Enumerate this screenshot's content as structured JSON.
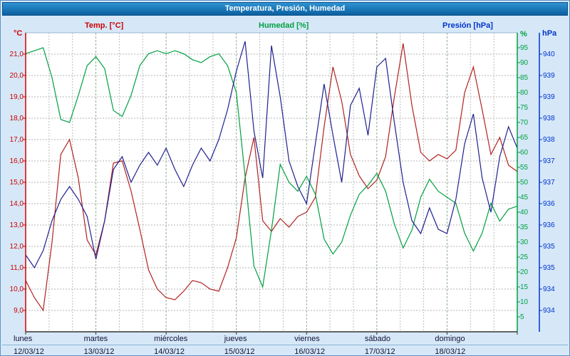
{
  "title": "Temperatura, Presión, Humedad",
  "legend": {
    "temp": "Temp. [°C]",
    "humidity": "Humedad [%]",
    "pressure": "Presión [hPa]"
  },
  "units": {
    "temp": "°C",
    "humidity": "%",
    "pressure": "hPa"
  },
  "chart_data": {
    "type": "line",
    "title": "Temperatura, Presión, Humedad",
    "x_step_hours": 3,
    "x_range_days": 7,
    "grid": "dashed",
    "days": [
      {
        "name": "lunes",
        "date": "12/03/12"
      },
      {
        "name": "martes",
        "date": "13/03/12"
      },
      {
        "name": "miércoles",
        "date": "14/03/12"
      },
      {
        "name": "jueves",
        "date": "15/03/12"
      },
      {
        "name": "viernes",
        "date": "16/03/12"
      },
      {
        "name": "sábado",
        "date": "17/03/12"
      },
      {
        "name": "domingo",
        "date": "18/03/12"
      }
    ],
    "axes": {
      "temp": {
        "label": "°C",
        "color": "#cc0000",
        "min": 8,
        "max": 22,
        "ticks": [
          {
            "value": 21,
            "label": "21,0"
          },
          {
            "value": 20,
            "label": "20,0"
          },
          {
            "value": 19,
            "label": "19,0"
          },
          {
            "value": 18,
            "label": "18,0"
          },
          {
            "value": 17,
            "label": "17,0"
          },
          {
            "value": 16,
            "label": "16,0"
          },
          {
            "value": 15,
            "label": "15,0"
          },
          {
            "value": 14,
            "label": "14,0"
          },
          {
            "value": 13,
            "label": "13,0"
          },
          {
            "value": 12,
            "label": "12,0"
          },
          {
            "value": 11,
            "label": "11,0"
          },
          {
            "value": 10,
            "label": "10,0"
          },
          {
            "value": 9,
            "label": "9,0"
          }
        ]
      },
      "humidity": {
        "label": "%",
        "color": "#00a040",
        "min": 0,
        "max": 100,
        "ticks": [
          {
            "value": 95,
            "label": "95"
          },
          {
            "value": 90,
            "label": "90"
          },
          {
            "value": 85,
            "label": "85"
          },
          {
            "value": 80,
            "label": "80"
          },
          {
            "value": 75,
            "label": "75"
          },
          {
            "value": 70,
            "label": "70"
          },
          {
            "value": 65,
            "label": "65"
          },
          {
            "value": 60,
            "label": "60"
          },
          {
            "value": 55,
            "label": "55"
          },
          {
            "value": 50,
            "label": "50"
          },
          {
            "value": 45,
            "label": "45"
          },
          {
            "value": 40,
            "label": "40"
          },
          {
            "value": 35,
            "label": "35"
          },
          {
            "value": 30,
            "label": "30"
          },
          {
            "value": 25,
            "label": "25"
          },
          {
            "value": 20,
            "label": "20"
          },
          {
            "value": 15,
            "label": "15"
          },
          {
            "value": 10,
            "label": "10"
          },
          {
            "value": 5,
            "label": "5"
          }
        ]
      },
      "pressure": {
        "label": "hPa",
        "color": "#0033cc",
        "min": 933.5,
        "max": 940.5,
        "ticks": [
          {
            "value": 940,
            "label": "940"
          },
          {
            "value": 939.5,
            "label": "939"
          },
          {
            "value": 939,
            "label": "939"
          },
          {
            "value": 938.5,
            "label": "938"
          },
          {
            "value": 938,
            "label": "938"
          },
          {
            "value": 937.5,
            "label": "937"
          },
          {
            "value": 937,
            "label": "937"
          },
          {
            "value": 936.5,
            "label": "936"
          },
          {
            "value": 936,
            "label": "936"
          },
          {
            "value": 935.5,
            "label": "935"
          },
          {
            "value": 935,
            "label": "935"
          },
          {
            "value": 934.5,
            "label": "934"
          },
          {
            "value": 934,
            "label": "934"
          }
        ]
      }
    },
    "series": [
      {
        "name": "Temp. [°C]",
        "axis": "temp",
        "color": "#b22222",
        "values": [
          10.4,
          9.6,
          9.0,
          12.2,
          16.3,
          17.0,
          15.2,
          12.3,
          11.6,
          13.2,
          15.9,
          16.0,
          14.6,
          12.8,
          10.9,
          10.0,
          9.6,
          9.5,
          9.9,
          10.4,
          10.3,
          10.0,
          9.9,
          11.0,
          12.4,
          15.2,
          17.1,
          13.2,
          12.7,
          13.3,
          12.9,
          13.4,
          13.6,
          14.3,
          17.6,
          20.4,
          18.8,
          16.3,
          15.3,
          14.7,
          15.1,
          16.2,
          19.0,
          21.5,
          18.6,
          16.4,
          16.0,
          16.3,
          16.1,
          16.5,
          19.2,
          20.4,
          18.4,
          16.3,
          17.1,
          15.8,
          15.5
        ]
      },
      {
        "name": "Humedad [%]",
        "axis": "humidity",
        "color": "#00a040",
        "values": [
          93,
          94,
          95,
          85,
          71,
          70,
          79,
          89,
          92,
          88,
          74,
          72,
          79,
          89,
          93,
          94,
          93,
          94,
          93,
          91,
          90,
          92,
          93,
          89,
          80,
          52,
          22,
          15,
          34,
          56,
          50,
          47,
          52,
          46,
          31,
          26,
          30,
          39,
          46,
          49,
          53,
          47,
          36,
          28,
          34,
          45,
          51,
          47,
          45,
          43,
          33,
          27,
          33,
          43,
          37,
          41,
          42
        ]
      },
      {
        "name": "Presión [hPa]",
        "axis": "pressure",
        "color": "#202090",
        "values": [
          935.3,
          935.0,
          935.4,
          936.1,
          936.6,
          936.9,
          936.6,
          936.2,
          935.2,
          936.1,
          937.3,
          937.6,
          937.0,
          937.4,
          937.7,
          937.4,
          937.8,
          937.3,
          936.9,
          937.4,
          937.8,
          937.5,
          938.0,
          938.7,
          939.6,
          940.3,
          938.2,
          937.1,
          940.2,
          939.0,
          937.5,
          936.9,
          936.5,
          937.9,
          939.3,
          938.1,
          937.0,
          938.8,
          939.2,
          938.1,
          939.7,
          939.9,
          938.4,
          937.0,
          936.1,
          935.8,
          936.4,
          935.9,
          935.8,
          936.6,
          937.9,
          938.6,
          937.1,
          936.3,
          937.6,
          938.3,
          937.8
        ]
      }
    ]
  }
}
